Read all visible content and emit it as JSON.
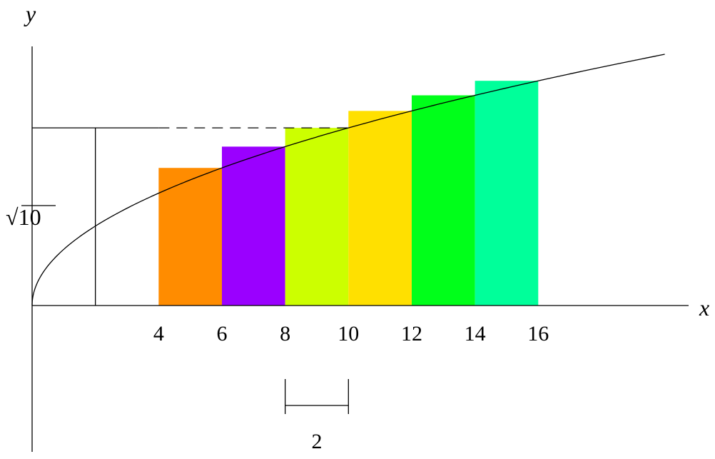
{
  "axis_labels": {
    "x": "x",
    "y": "y"
  },
  "y_marker_label": "√10",
  "y_marker_value": 10,
  "function": "sqrt",
  "x_ticks": [
    "4",
    "6",
    "8",
    "10",
    "12",
    "14",
    "16"
  ],
  "rectangles": [
    {
      "x_start": 4,
      "x_end": 6,
      "height_at": 6,
      "color": "#ff8c00"
    },
    {
      "x_start": 6,
      "x_end": 8,
      "height_at": 8,
      "color": "#9a00ff"
    },
    {
      "x_start": 8,
      "x_end": 10,
      "height_at": 10,
      "color": "#ccff00"
    },
    {
      "x_start": 10,
      "x_end": 12,
      "height_at": 12,
      "color": "#ffe000"
    },
    {
      "x_start": 12,
      "x_end": 14,
      "height_at": 14,
      "color": "#00ff1a"
    },
    {
      "x_start": 14,
      "x_end": 16,
      "height_at": 16,
      "color": "#00ff9a"
    }
  ],
  "width_bracket": {
    "x_start": 8,
    "x_end": 10,
    "label": "2"
  },
  "curve_x_max": 20
}
